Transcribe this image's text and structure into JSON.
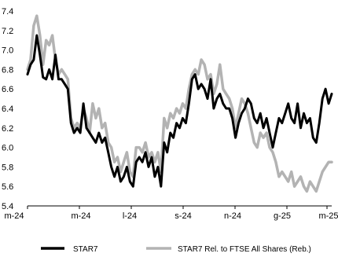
{
  "chart_data": {
    "type": "line",
    "title": "",
    "xlabel": "",
    "ylabel": "",
    "ylim": [
      5.4,
      7.4
    ],
    "yticks": [
      "7.4",
      "7.2",
      "7.0",
      "6.8",
      "6.6",
      "6.4",
      "6.2",
      "6.0",
      "5.8",
      "5.6",
      "5.4"
    ],
    "ytick_values": [
      7.4,
      7.2,
      7.0,
      6.8,
      6.6,
      6.4,
      6.2,
      6.0,
      5.8,
      5.6,
      5.4
    ],
    "xticks": [
      "m-24",
      "m-24",
      "l-24",
      "s-24",
      "n-24",
      "g-25",
      "m-25"
    ],
    "grid": false,
    "legend_position": "bottom",
    "series": [
      {
        "name": "STAR7",
        "color": "#000000",
        "values": [
          6.75,
          6.85,
          6.9,
          7.15,
          6.95,
          6.72,
          6.7,
          6.8,
          6.7,
          6.95,
          6.7,
          6.7,
          6.65,
          6.6,
          6.25,
          6.15,
          6.2,
          6.15,
          6.45,
          6.2,
          6.15,
          6.1,
          6.05,
          6.15,
          6.05,
          6.1,
          5.95,
          5.8,
          5.7,
          5.8,
          5.65,
          5.7,
          5.8,
          5.65,
          5.6,
          5.85,
          5.9,
          5.85,
          5.95,
          5.8,
          5.9,
          5.7,
          5.8,
          5.6,
          6.05,
          5.95,
          6.15,
          6.1,
          6.25,
          6.2,
          6.3,
          6.25,
          6.45,
          6.7,
          6.75,
          6.6,
          6.65,
          6.6,
          6.5,
          6.7,
          6.4,
          6.5,
          6.55,
          6.45,
          6.4,
          6.4,
          6.3,
          6.1,
          6.25,
          6.35,
          6.4,
          6.5,
          6.45,
          6.3,
          6.25,
          6.35,
          6.2,
          6.3,
          6.15,
          6.0,
          6.15,
          6.3,
          6.25,
          6.35,
          6.45,
          6.3,
          6.25,
          6.45,
          6.2,
          6.35,
          6.25,
          6.3,
          6.1,
          6.05,
          6.25,
          6.5,
          6.6,
          6.45,
          6.55
        ]
      },
      {
        "name": "STAR7 Rel. to FTSE All Shares (Reb.)",
        "color": "#b3b3b3",
        "values": [
          6.8,
          6.9,
          7.25,
          7.35,
          7.15,
          6.85,
          7.1,
          7.05,
          7.15,
          6.9,
          6.75,
          6.8,
          6.75,
          6.7,
          6.3,
          6.2,
          6.25,
          6.2,
          6.4,
          6.3,
          6.15,
          6.45,
          6.3,
          6.4,
          6.2,
          6.25,
          6.05,
          6.0,
          5.85,
          5.9,
          5.75,
          5.85,
          5.95,
          5.75,
          5.7,
          6.0,
          6.0,
          5.95,
          6.05,
          5.9,
          5.95,
          5.85,
          5.95,
          5.75,
          6.3,
          6.2,
          6.35,
          6.3,
          6.4,
          6.35,
          6.45,
          6.4,
          6.6,
          6.75,
          6.8,
          6.75,
          6.9,
          6.85,
          6.7,
          6.75,
          6.55,
          6.65,
          6.85,
          6.6,
          6.55,
          6.5,
          6.4,
          6.2,
          6.35,
          6.5,
          6.45,
          6.35,
          6.2,
          6.05,
          6.0,
          6.15,
          6.1,
          6.15,
          6.0,
          5.95,
          5.85,
          5.7,
          5.75,
          5.7,
          5.65,
          5.75,
          5.6,
          5.65,
          5.7,
          5.6,
          5.55,
          5.65,
          5.6,
          5.55,
          5.65,
          5.75,
          5.8,
          5.85,
          5.85
        ]
      }
    ]
  }
}
